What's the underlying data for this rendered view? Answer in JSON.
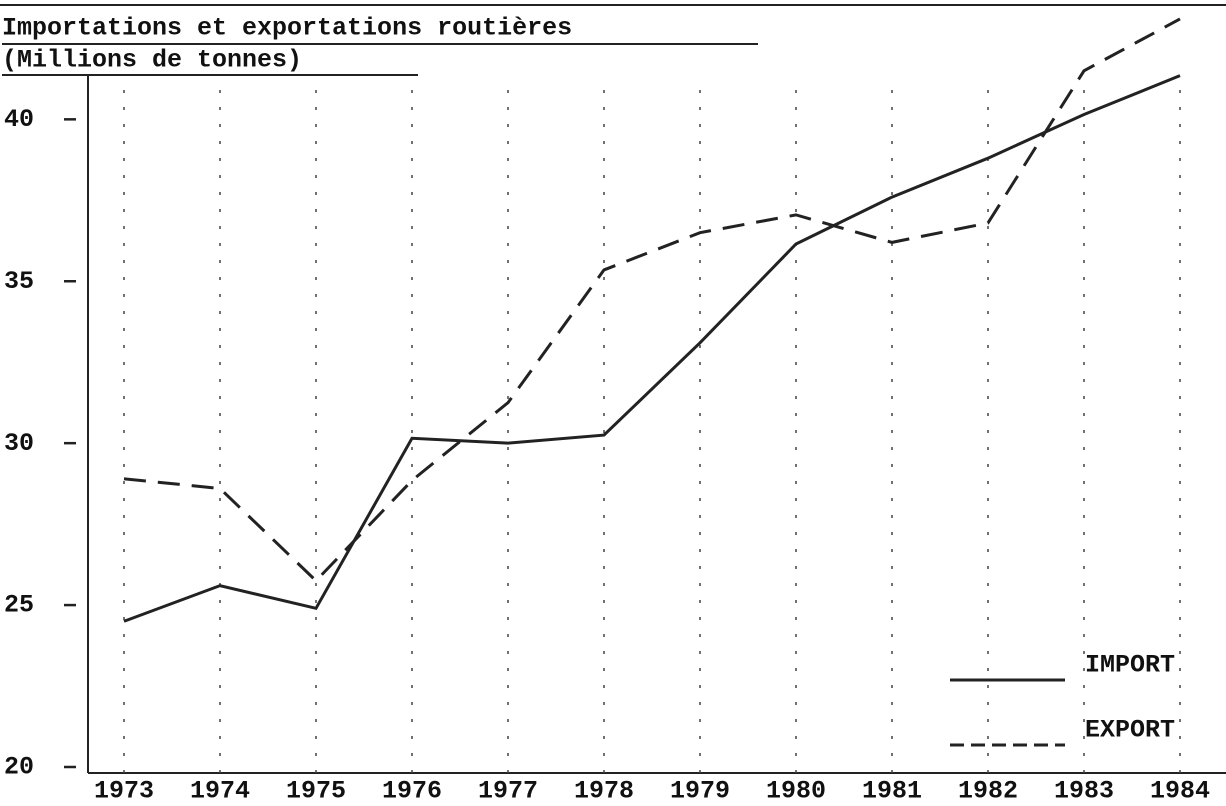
{
  "chart_data": {
    "type": "line",
    "title": "Importations et exportations routières",
    "subtitle": "(Millions de tonnes)",
    "categories": [
      "1973",
      "1974",
      "1975",
      "1976",
      "1977",
      "1978",
      "1979",
      "1980",
      "1981",
      "1982",
      "1983",
      "1984"
    ],
    "series": [
      {
        "name": "IMPORT",
        "color": "#222222",
        "style": "solid",
        "values": [
          24.5,
          25.6,
          24.9,
          30.15,
          30.0,
          30.25,
          33.1,
          36.15,
          37.6,
          38.8,
          40.15,
          41.35
        ]
      },
      {
        "name": "EXPORT",
        "color": "#222222",
        "style": "dashed",
        "values": [
          28.9,
          28.6,
          25.75,
          28.85,
          31.25,
          35.35,
          36.5,
          37.05,
          36.2,
          36.8,
          41.5,
          43.1
        ]
      }
    ],
    "ylim": [
      20,
      43.5
    ],
    "yticks": [
      20,
      25,
      30,
      35,
      40
    ],
    "grid": true,
    "legend": "lower right"
  }
}
